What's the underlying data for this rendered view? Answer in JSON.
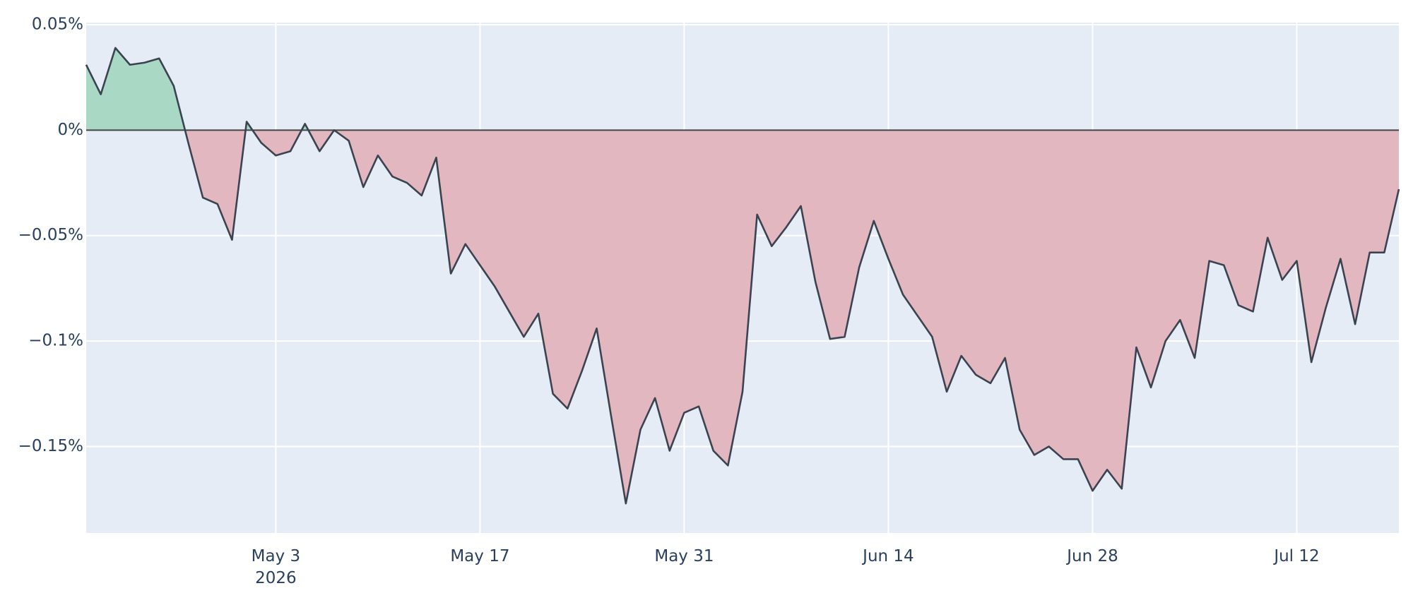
{
  "chart_data": {
    "type": "area",
    "x": [
      "2026-04-20",
      "2026-04-21",
      "2026-04-22",
      "2026-04-23",
      "2026-04-24",
      "2026-04-25",
      "2026-04-26",
      "2026-04-27",
      "2026-04-28",
      "2026-04-29",
      "2026-04-30",
      "2026-05-01",
      "2026-05-02",
      "2026-05-03",
      "2026-05-04",
      "2026-05-05",
      "2026-05-06",
      "2026-05-07",
      "2026-05-08",
      "2026-05-09",
      "2026-05-10",
      "2026-05-11",
      "2026-05-12",
      "2026-05-13",
      "2026-05-14",
      "2026-05-15",
      "2026-05-16",
      "2026-05-17",
      "2026-05-18",
      "2026-05-19",
      "2026-05-20",
      "2026-05-21",
      "2026-05-22",
      "2026-05-23",
      "2026-05-24",
      "2026-05-25",
      "2026-05-26",
      "2026-05-27",
      "2026-05-28",
      "2026-05-29",
      "2026-05-30",
      "2026-05-31",
      "2026-06-01",
      "2026-06-02",
      "2026-06-03",
      "2026-06-04",
      "2026-06-05",
      "2026-06-06",
      "2026-06-07",
      "2026-06-08",
      "2026-06-09",
      "2026-06-10",
      "2026-06-11",
      "2026-06-12",
      "2026-06-13",
      "2026-06-14",
      "2026-06-15",
      "2026-06-16",
      "2026-06-17",
      "2026-06-18",
      "2026-06-19",
      "2026-06-20",
      "2026-06-21",
      "2026-06-22",
      "2026-06-23",
      "2026-06-24",
      "2026-06-25",
      "2026-06-26",
      "2026-06-27",
      "2026-06-28",
      "2026-06-29",
      "2026-06-30",
      "2026-07-01",
      "2026-07-02",
      "2026-07-03",
      "2026-07-04",
      "2026-07-05",
      "2026-07-06",
      "2026-07-07",
      "2026-07-08",
      "2026-07-09",
      "2026-07-10",
      "2026-07-11",
      "2026-07-12",
      "2026-07-13",
      "2026-07-14",
      "2026-07-15",
      "2026-07-16",
      "2026-07-17",
      "2026-07-18",
      "2026-07-19"
    ],
    "values": [
      0.031,
      0.017,
      0.039,
      0.031,
      0.032,
      0.034,
      0.021,
      -0.006,
      -0.032,
      -0.035,
      -0.052,
      0.004,
      -0.006,
      -0.012,
      -0.01,
      0.003,
      -0.01,
      0.0,
      -0.005,
      -0.027,
      -0.012,
      -0.022,
      -0.025,
      -0.031,
      -0.013,
      -0.068,
      -0.054,
      -0.064,
      -0.074,
      -0.086,
      -0.098,
      -0.087,
      -0.125,
      -0.132,
      -0.114,
      -0.094,
      -0.136,
      -0.177,
      -0.142,
      -0.127,
      -0.152,
      -0.134,
      -0.131,
      -0.152,
      -0.159,
      -0.124,
      -0.04,
      -0.055,
      -0.046,
      -0.036,
      -0.072,
      -0.099,
      -0.098,
      -0.065,
      -0.043,
      -0.061,
      -0.078,
      -0.088,
      -0.098,
      -0.124,
      -0.107,
      -0.116,
      -0.12,
      -0.108,
      -0.142,
      -0.154,
      -0.15,
      -0.156,
      -0.156,
      -0.171,
      -0.161,
      -0.17,
      -0.103,
      -0.122,
      -0.1,
      -0.09,
      -0.108,
      -0.062,
      -0.064,
      -0.083,
      -0.086,
      -0.051,
      -0.071,
      -0.062,
      -0.11,
      -0.084,
      -0.061,
      -0.092,
      -0.058,
      -0.058,
      -0.028
    ],
    "line_color": "#3b4350",
    "positive_color": "#a9d8c5",
    "negative_color": "#e2b7bf",
    "xlim": [
      "2026-04-20",
      "2026-07-19"
    ],
    "xticks": [
      {
        "value": "2026-05-03",
        "label": "May 3\n2026"
      },
      {
        "value": "2026-05-17",
        "label": "May 17"
      },
      {
        "value": "2026-05-31",
        "label": "May 31"
      },
      {
        "value": "2026-06-14",
        "label": "Jun 14"
      },
      {
        "value": "2026-06-28",
        "label": "Jun 28"
      },
      {
        "value": "2026-07-12",
        "label": "Jul 12"
      }
    ],
    "ylim": [
      -0.191,
      0.051
    ],
    "yticks": [
      {
        "value": 0.05,
        "label": "0.05%"
      },
      {
        "value": 0,
        "label": "0%"
      },
      {
        "value": -0.05,
        "label": "−0.05%"
      },
      {
        "value": -0.1,
        "label": "−0.1%"
      },
      {
        "value": -0.15,
        "label": "−0.15%"
      }
    ],
    "grid": true
  }
}
